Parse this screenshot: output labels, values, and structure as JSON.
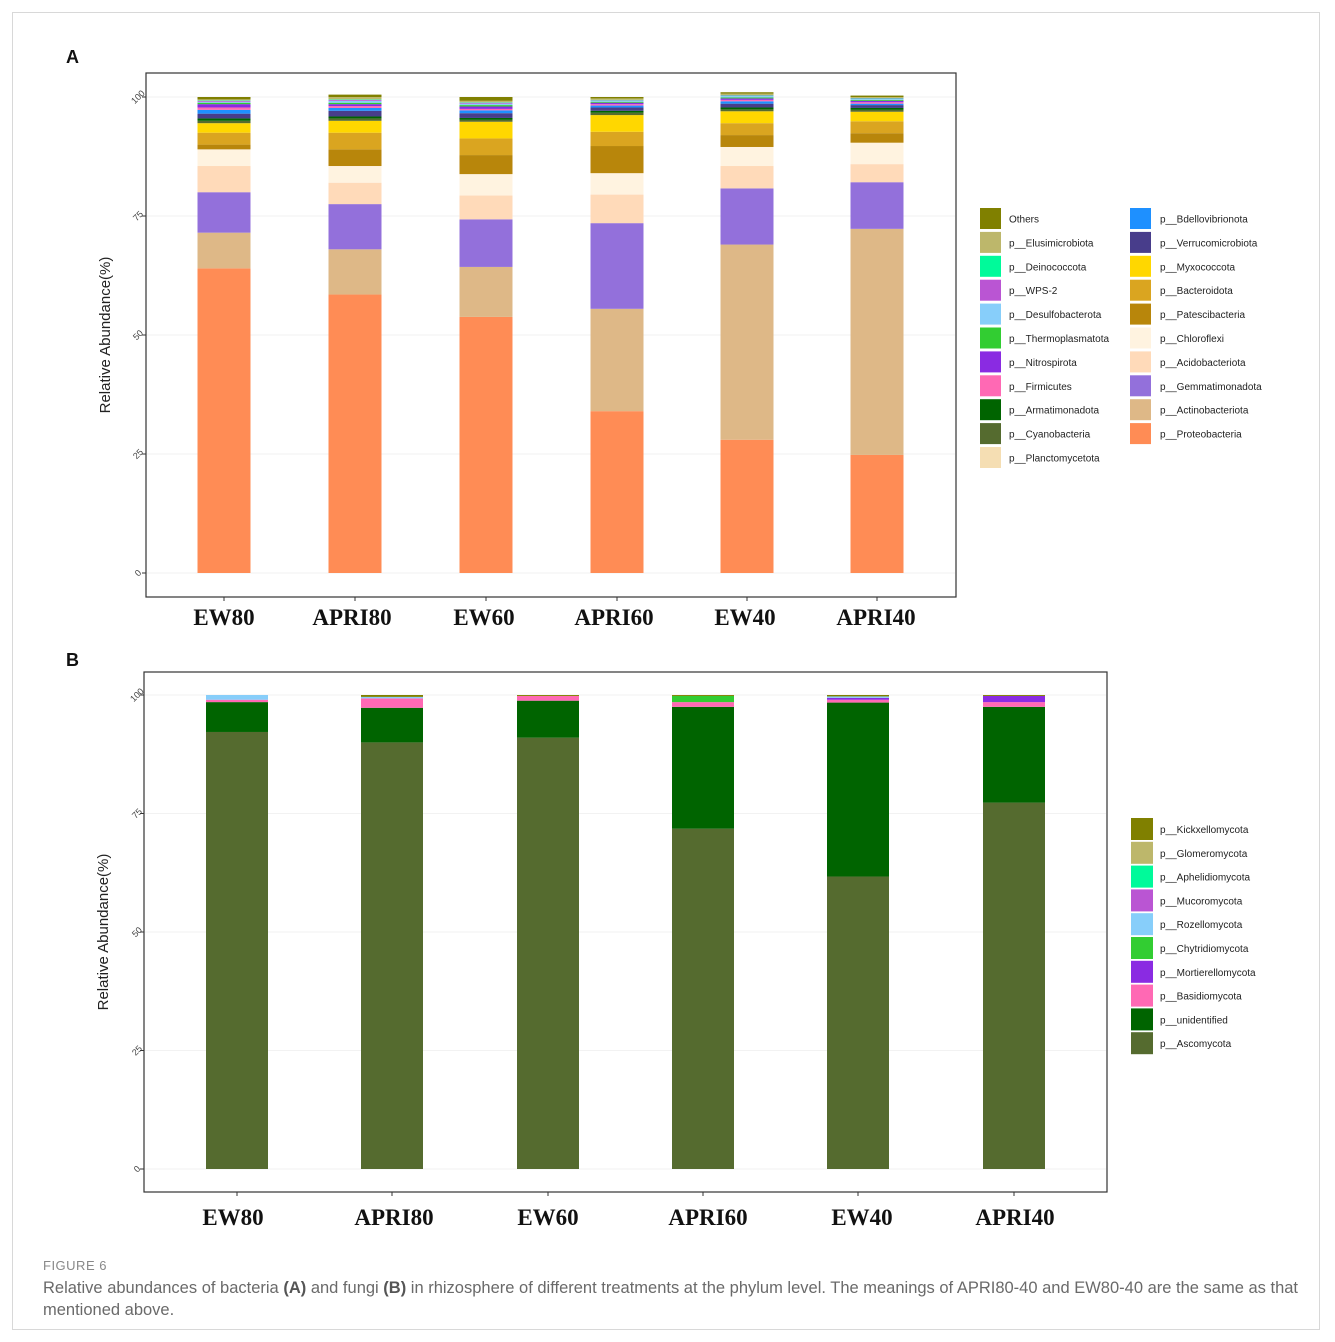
{
  "caption": {
    "label": "FIGURE 6",
    "pre": "Relative abundances of bacteria ",
    "a": "(A)",
    "mid": " and fungi ",
    "b": "(B)",
    "post": " in rhizosphere of different treatments at the phylum level. The meanings of APRI80-40 and EW80-40 are the same as that mentioned above."
  },
  "chart_data": [
    {
      "type": "bar",
      "stacked": true,
      "panel_label": "A",
      "ylabel": "Relative Abundance(%)",
      "ylim": [
        0,
        100
      ],
      "yticks": [
        0,
        25,
        50,
        75,
        100
      ],
      "legend_position": "right",
      "categories": [
        "EW80",
        "APRI80",
        "EW60",
        "APRI60",
        "EW40",
        "APRI40"
      ],
      "series": [
        {
          "name": "p__Proteobacteria",
          "color": "#FF8C55",
          "values": [
            64.0,
            58.5,
            53.8,
            34.0,
            28.0,
            24.8
          ]
        },
        {
          "name": "p__Actinobacteriota",
          "color": "#DEB887",
          "values": [
            7.5,
            9.5,
            10.5,
            21.5,
            41.0,
            47.5
          ]
        },
        {
          "name": "p__Gemmatimonadota",
          "color": "#9370DB",
          "values": [
            8.5,
            9.5,
            10.0,
            18.0,
            11.8,
            9.8
          ]
        },
        {
          "name": "p__Acidobacteriota",
          "color": "#FFDAB9",
          "values": [
            5.5,
            4.5,
            5.0,
            6.0,
            4.7,
            3.8
          ]
        },
        {
          "name": "p__Chloroflexi",
          "color": "#FFF3E0",
          "values": [
            3.5,
            3.5,
            4.5,
            4.5,
            4.0,
            4.5
          ]
        },
        {
          "name": "p__Planctomycetota",
          "color": "#F5DEB3",
          "values": [
            0,
            0,
            0,
            0,
            0,
            0
          ]
        },
        {
          "name": "p__Patescibacteria",
          "color": "#B8860B",
          "values": [
            1.0,
            3.5,
            4.0,
            5.7,
            2.5,
            2.0
          ]
        },
        {
          "name": "p__Bacteroidota",
          "color": "#DAA520",
          "values": [
            2.5,
            3.5,
            3.5,
            3.0,
            2.5,
            2.5
          ]
        },
        {
          "name": "p__Myxococcota",
          "color": "#FFD700",
          "values": [
            2.0,
            2.5,
            3.5,
            3.5,
            2.5,
            2.0
          ]
        },
        {
          "name": "p__Cyanobacteria",
          "color": "#556B2F",
          "values": [
            0.5,
            0.5,
            0.4,
            0.5,
            0.4,
            0.4
          ]
        },
        {
          "name": "p__Armatimonadota",
          "color": "#006400",
          "values": [
            0.5,
            0.4,
            0.4,
            0.4,
            0.4,
            0.4
          ]
        },
        {
          "name": "p__Verrucomicrobiota",
          "color": "#483D8B",
          "values": [
            1.0,
            1.2,
            1.0,
            0.7,
            0.8,
            0.6
          ]
        },
        {
          "name": "p__Bdellovibrionota",
          "color": "#1E90FF",
          "values": [
            0.8,
            0.6,
            0.6,
            0.4,
            0.5,
            0.3
          ]
        },
        {
          "name": "p__Firmicutes",
          "color": "#FF69B4",
          "values": [
            0.5,
            0.4,
            0.3,
            0.3,
            0.3,
            0.3
          ]
        },
        {
          "name": "p__Nitrospirota",
          "color": "#8A2BE2",
          "values": [
            0.7,
            0.4,
            0.5,
            0.3,
            0.3,
            0.3
          ]
        },
        {
          "name": "p__Thermoplasmatota",
          "color": "#32CD32",
          "values": [
            0.3,
            0.3,
            0.3,
            0.2,
            0.2,
            0.2
          ]
        },
        {
          "name": "p__Desulfobacterota",
          "color": "#87CEFA",
          "values": [
            0.2,
            0.4,
            0.3,
            0.2,
            0.3,
            0.2
          ]
        },
        {
          "name": "p__WPS-2",
          "color": "#BA55D3",
          "values": [
            0.2,
            0.2,
            0.2,
            0.1,
            0.1,
            0.1
          ]
        },
        {
          "name": "p__Deinococcota",
          "color": "#00FA9A",
          "values": [
            0.1,
            0.1,
            0.1,
            0.1,
            0.1,
            0.1
          ]
        },
        {
          "name": "p__Elusimicrobiota",
          "color": "#BDB76B",
          "values": [
            0.2,
            0.5,
            0.3,
            0.3,
            0.3,
            0.2
          ]
        },
        {
          "name": "Others",
          "color": "#808000",
          "values": [
            0.5,
            0.5,
            0.8,
            0.3,
            0.3,
            0.3
          ]
        }
      ],
      "legend": {
        "col1": [
          "Others",
          "p__Elusimicrobiota",
          "p__Deinococcota",
          "p__WPS-2",
          "p__Desulfobacterota",
          "p__Thermoplasmatota",
          "p__Nitrospirota",
          "p__Firmicutes",
          "p__Armatimonadota",
          "p__Cyanobacteria",
          "p__Planctomycetota"
        ],
        "col2": [
          "p__Bdellovibrionota",
          "p__Verrucomicrobiota",
          "p__Myxococcota",
          "p__Bacteroidota",
          "p__Patescibacteria",
          "p__Chloroflexi",
          "p__Acidobacteriota",
          "p__Gemmatimonadota",
          "p__Actinobacteriota",
          "p__Proteobacteria"
        ]
      }
    },
    {
      "type": "bar",
      "stacked": true,
      "panel_label": "B",
      "ylabel": "Relative Abundance(%)",
      "ylim": [
        0,
        100
      ],
      "yticks": [
        0,
        25,
        50,
        75,
        100
      ],
      "legend_position": "right",
      "categories": [
        "EW80",
        "APRI80",
        "EW60",
        "APRI60",
        "EW40",
        "APRI40"
      ],
      "series": [
        {
          "name": "p__Ascomycota",
          "color": "#556B2F",
          "values": [
            92.2,
            90.0,
            91.0,
            71.8,
            61.7,
            77.3
          ]
        },
        {
          "name": "p__unidentified",
          "color": "#006400",
          "values": [
            6.3,
            7.3,
            7.8,
            25.7,
            36.7,
            20.2
          ]
        },
        {
          "name": "p__Basidiomycota",
          "color": "#FF69B4",
          "values": [
            0.5,
            2.0,
            1.0,
            1.0,
            0.6,
            1.0
          ]
        },
        {
          "name": "p__Mortierellomycota",
          "color": "#8A2BE2",
          "values": [
            0.0,
            0.0,
            0.0,
            0.0,
            0.4,
            1.3
          ]
        },
        {
          "name": "p__Chytridiomycota",
          "color": "#32CD32",
          "values": [
            0.0,
            0.0,
            0.0,
            1.3,
            0.0,
            0.0
          ]
        },
        {
          "name": "p__Rozellomycota",
          "color": "#87CEFA",
          "values": [
            1.0,
            0.3,
            0.0,
            0.0,
            0.3,
            0.0
          ]
        },
        {
          "name": "p__Mucoromycota",
          "color": "#BA55D3",
          "values": [
            0.0,
            0.0,
            0.0,
            0.0,
            0.0,
            0.0
          ]
        },
        {
          "name": "p__Aphelidiomycota",
          "color": "#00FA9A",
          "values": [
            0.0,
            0.0,
            0.0,
            0.0,
            0.0,
            0.0
          ]
        },
        {
          "name": "p__Glomeromycota",
          "color": "#BDB76B",
          "values": [
            0.0,
            0.0,
            0.0,
            0.0,
            0.0,
            0.0
          ]
        },
        {
          "name": "p__Kickxellomycota",
          "color": "#808000",
          "values": [
            0.0,
            0.4,
            0.2,
            0.2,
            0.3,
            0.2
          ]
        }
      ],
      "legend": {
        "col1": [
          "p__Kickxellomycota",
          "p__Glomeromycota",
          "p__Aphelidiomycota",
          "p__Mucoromycota",
          "p__Rozellomycota",
          "p__Chytridiomycota",
          "p__Mortierellomycota",
          "p__Basidiomycota",
          "p__unidentified",
          "p__Ascomycota"
        ]
      }
    }
  ]
}
